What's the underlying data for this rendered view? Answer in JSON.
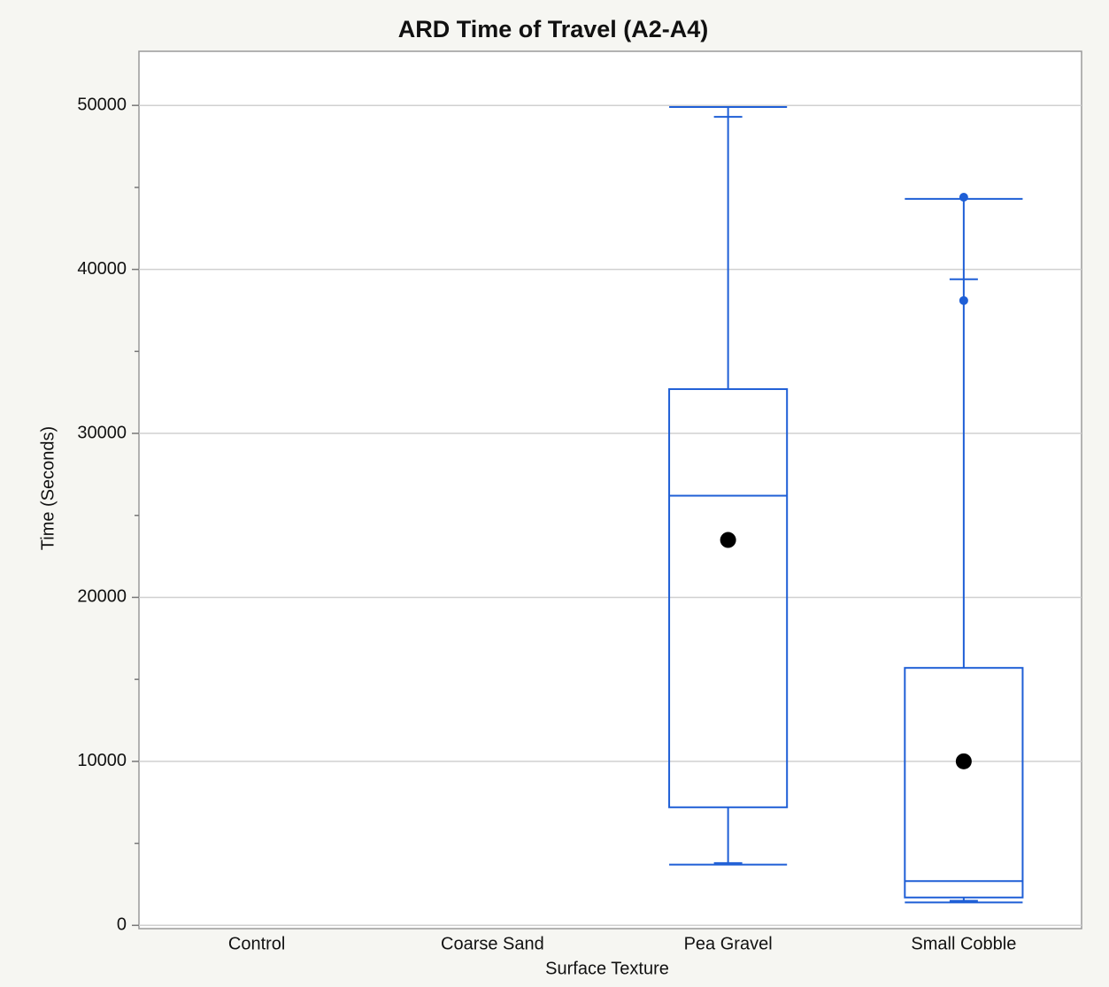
{
  "chart_data": {
    "type": "box",
    "title": "ARD Time of Travel (A2-A4)",
    "x_label": "Surface Texture",
    "y_label": "Time (Seconds)",
    "categories": [
      "Control",
      "Coarse Sand",
      "Pea Gravel",
      "Small Cobble"
    ],
    "whisker_low": [
      null,
      null,
      3700,
      1400
    ],
    "q1": [
      null,
      null,
      7200,
      1700
    ],
    "median": [
      null,
      null,
      26200,
      2700
    ],
    "q3": [
      null,
      null,
      32700,
      15700
    ],
    "whisker_high": [
      null,
      null,
      49900,
      44300
    ],
    "mean": [
      null,
      null,
      23500,
      10000
    ],
    "whisker_marks": [
      [],
      [],
      [
        49300,
        3800
      ],
      [
        39400,
        1500
      ]
    ],
    "points": [
      [],
      [],
      [],
      [
        44400,
        38100
      ]
    ],
    "color": "#1f5fd6",
    "mean_color": "#000000",
    "ylim": [
      -200,
      53300
    ],
    "yticks": [
      0,
      10000,
      20000,
      30000,
      40000,
      50000
    ],
    "minor_yticks": [
      5000,
      15000,
      25000,
      35000,
      45000
    ],
    "grid": true
  }
}
